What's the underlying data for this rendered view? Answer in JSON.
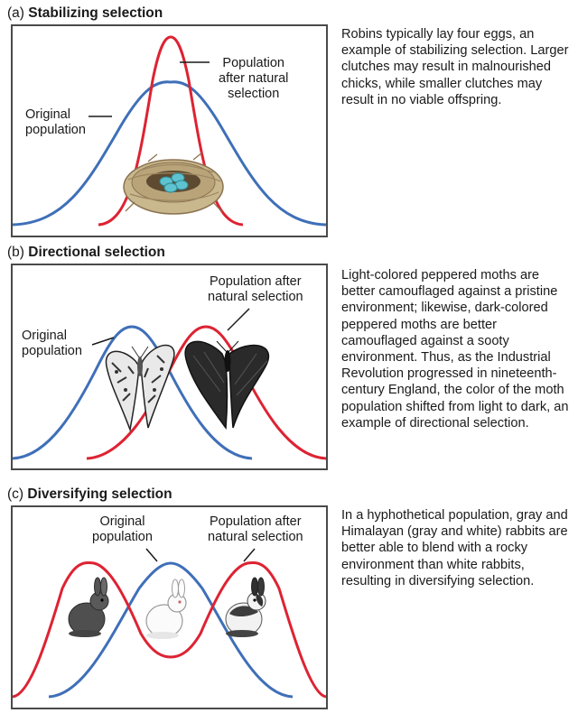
{
  "panels": [
    {
      "letter": "(a) ",
      "name": "Stabilizing selection",
      "label_original": "Original\npopulation",
      "label_after": "Population\nafter natural\nselection",
      "description": "Robins typically lay four eggs, an example of stabilizing selection. Larger clutches may result in malnourished chicks, while smaller clutches may result in no viable offspring.",
      "illustration": "bird-nest-with-eggs"
    },
    {
      "letter": "(b) ",
      "name": "Directional selection",
      "label_original": "Original\npopulation",
      "label_after": "Population after\nnatural selection",
      "description": "Light-colored peppered moths are better camouflaged against a pristine environment; likewise, dark-colored peppered moths are better camouflaged against a sooty environment. Thus, as the Industrial Revolution progressed in nineteenth-century England, the color of the moth population shifted from light to dark, an example of directional selection.",
      "illustration": "light-and-dark-peppered-moths"
    },
    {
      "letter": "(c) ",
      "name": "Diversifying selection",
      "label_original": "Original\npopulation",
      "label_after": "Population after\nnatural selection",
      "description": "In a hyphothetical population, gray and Himalayan (gray and white) rabbits are better able to blend with a rocky environment than white rabbits, resulting in diversifying selection.",
      "illustration": "gray-white-himalayan-rabbits"
    }
  ],
  "colors": {
    "original_curve": "#3f6fb8",
    "selected_curve": "#dd2333",
    "frame": "#4a4a4a"
  }
}
